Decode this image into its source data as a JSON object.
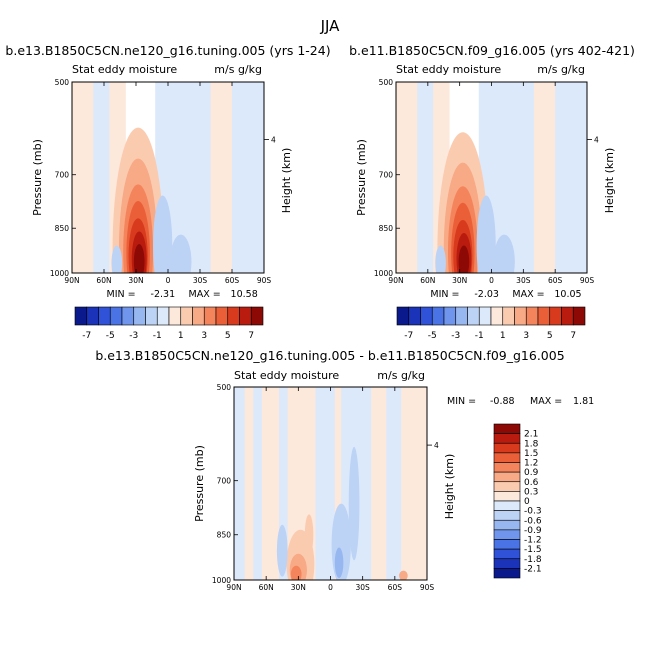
{
  "figure": {
    "title": "JJA",
    "levels_full": [
      -7,
      -6,
      -5,
      -4,
      -3,
      -2,
      -1,
      0,
      1,
      2,
      3,
      4,
      5,
      6,
      7
    ],
    "full_colorbar_labels": [
      "-7",
      "-5",
      "-3",
      "-1",
      "1",
      "3",
      "5",
      "7"
    ],
    "levels_diff": [
      "2.1",
      "1.8",
      "1.5",
      "1.2",
      "0.9",
      "0.6",
      "0.3",
      "0",
      "-0.3",
      "-0.6",
      "-0.9",
      "-1.2",
      "-1.5",
      "-1.8",
      "-2.1"
    ],
    "colors_pos": [
      "#fde9dc",
      "#fbcbb0",
      "#f8a985",
      "#f4845b",
      "#ea5f38",
      "#d83a1d",
      "#b91b0e",
      "#8c0906"
    ],
    "colors_neg": [
      "#dce9fb",
      "#bcd3f6",
      "#97b7f0",
      "#6f96ec",
      "#4a73e6",
      "#2f52d8",
      "#1a33b8",
      "#0a1a8c"
    ]
  },
  "chart_data": [
    {
      "type": "heatmap",
      "title": "b.e13.B1850C5CN.ne120_g16.tuning.005 (yrs 1-24)",
      "left_label": "Stat eddy moisture",
      "right_label": "m/s g/kg",
      "ylabel": "Pressure (mb)",
      "y2label": "Height (km)",
      "xticks": [
        "90N",
        "60N",
        "30N",
        "0",
        "30S",
        "60S",
        "90S"
      ],
      "yticks": [
        "500",
        "700",
        "850",
        "1000"
      ],
      "y2ticks": [
        "4"
      ],
      "xlim": [
        90,
        -90
      ],
      "ylim": [
        1000,
        500
      ],
      "min_label": "MIN = ",
      "min_value": "-2.31",
      "max_label": "MAX = ",
      "max_value": "10.58",
      "field": {
        "bg": [
          {
            "x0": 90,
            "x1": 70,
            "v": 0.5
          },
          {
            "x0": 70,
            "x1": 55,
            "v": -0.5
          },
          {
            "x0": 55,
            "x1": 40,
            "v": 0.5
          },
          {
            "x0": 12,
            "x1": -10,
            "v": -0.5
          },
          {
            "x0": -10,
            "x1": -40,
            "v": -0.5
          },
          {
            "x0": -40,
            "x1": -60,
            "v": 0.5
          },
          {
            "x0": -60,
            "x1": -90,
            "v": -0.5
          }
        ],
        "blobs": [
          {
            "lat": 28,
            "p": 920,
            "rx": 24,
            "rp": 330,
            "v": 1.5
          },
          {
            "lat": 28,
            "p": 920,
            "rx": 18,
            "rp": 260,
            "v": 2.5
          },
          {
            "lat": 28,
            "p": 925,
            "rx": 14,
            "rp": 200,
            "v": 3.5
          },
          {
            "lat": 28,
            "p": 930,
            "rx": 11,
            "rp": 160,
            "v": 4.5
          },
          {
            "lat": 28,
            "p": 940,
            "rx": 9,
            "rp": 120,
            "v": 5.5
          },
          {
            "lat": 27,
            "p": 950,
            "rx": 7,
            "rp": 90,
            "v": 6.5
          },
          {
            "lat": 27,
            "p": 960,
            "rx": 5,
            "rp": 60,
            "v": 7.5
          },
          {
            "lat": 5,
            "p": 905,
            "rx": 9,
            "rp": 150,
            "v": -1.5
          },
          {
            "lat": -12,
            "p": 960,
            "rx": 10,
            "rp": 90,
            "v": -1.5
          },
          {
            "lat": 48,
            "p": 965,
            "rx": 5,
            "rp": 60,
            "v": -1.5
          }
        ]
      }
    },
    {
      "type": "heatmap",
      "title": "b.e11.B1850C5CN.f09_g16.005 (yrs 402-421)",
      "left_label": "Stat eddy moisture",
      "right_label": "m/s g/kg",
      "ylabel": "Pressure (mb)",
      "y2label": "Height (km)",
      "xticks": [
        "90N",
        "60N",
        "30N",
        "0",
        "30S",
        "60S",
        "90S"
      ],
      "yticks": [
        "500",
        "700",
        "850",
        "1000"
      ],
      "y2ticks": [
        "4"
      ],
      "xlim": [
        90,
        -90
      ],
      "ylim": [
        1000,
        500
      ],
      "min_label": "MIN = ",
      "min_value": "-2.03",
      "max_label": "MAX = ",
      "max_value": "10.05",
      "field": {
        "bg": [
          {
            "x0": 90,
            "x1": 70,
            "v": 0.5
          },
          {
            "x0": 70,
            "x1": 55,
            "v": -0.5
          },
          {
            "x0": 55,
            "x1": 40,
            "v": 0.5
          },
          {
            "x0": 12,
            "x1": -10,
            "v": -0.5
          },
          {
            "x0": -10,
            "x1": -40,
            "v": -0.5
          },
          {
            "x0": -40,
            "x1": -60,
            "v": 0.5
          },
          {
            "x0": -60,
            "x1": -90,
            "v": -0.5
          }
        ],
        "blobs": [
          {
            "lat": 27,
            "p": 920,
            "rx": 24,
            "rp": 320,
            "v": 1.5
          },
          {
            "lat": 27,
            "p": 920,
            "rx": 18,
            "rp": 250,
            "v": 2.5
          },
          {
            "lat": 27,
            "p": 925,
            "rx": 14,
            "rp": 195,
            "v": 3.5
          },
          {
            "lat": 27,
            "p": 930,
            "rx": 11,
            "rp": 155,
            "v": 4.5
          },
          {
            "lat": 27,
            "p": 940,
            "rx": 9,
            "rp": 115,
            "v": 5.5
          },
          {
            "lat": 26,
            "p": 950,
            "rx": 7,
            "rp": 85,
            "v": 6.5
          },
          {
            "lat": 26,
            "p": 960,
            "rx": 5,
            "rp": 55,
            "v": 7.5
          },
          {
            "lat": 5,
            "p": 905,
            "rx": 9,
            "rp": 150,
            "v": -1.5
          },
          {
            "lat": -12,
            "p": 960,
            "rx": 10,
            "rp": 90,
            "v": -1.5
          },
          {
            "lat": 48,
            "p": 965,
            "rx": 5,
            "rp": 60,
            "v": -1.5
          }
        ]
      }
    },
    {
      "type": "heatmap",
      "title": "b.e13.B1850C5CN.ne120_g16.tuning.005 - b.e11.B1850C5CN.f09_g16.005",
      "left_label": "Stat eddy moisture",
      "right_label": "m/s g/kg",
      "ylabel": "Pressure (mb)",
      "y2label": "Height (km)",
      "xticks": [
        "90N",
        "60N",
        "30N",
        "0",
        "30S",
        "60S",
        "90S"
      ],
      "yticks": [
        "500",
        "700",
        "850",
        "1000"
      ],
      "y2ticks": [
        "4"
      ],
      "xlim": [
        90,
        -90
      ],
      "ylim": [
        1000,
        500
      ],
      "min_label": "MIN = ",
      "min_value": "-0.88",
      "max_label": "MAX = ",
      "max_value": "1.81",
      "field": {
        "bg": [
          {
            "x0": 90,
            "x1": 80,
            "v": -0.15
          },
          {
            "x0": 80,
            "x1": 72,
            "v": 0.15
          },
          {
            "x0": 72,
            "x1": 64,
            "v": -0.15
          },
          {
            "x0": 64,
            "x1": 48,
            "v": 0.15
          },
          {
            "x0": 48,
            "x1": 40,
            "v": -0.15
          },
          {
            "x0": 40,
            "x1": 14,
            "v": 0.15
          },
          {
            "x0": 14,
            "x1": -4,
            "v": -0.15
          },
          {
            "x0": -4,
            "x1": -10,
            "v": 0.15
          },
          {
            "x0": -10,
            "x1": -22,
            "v": -0.15
          },
          {
            "x0": -22,
            "x1": -38,
            "v": -0.15
          },
          {
            "x0": -38,
            "x1": -52,
            "v": 0.15
          },
          {
            "x0": -52,
            "x1": -66,
            "v": -0.15
          },
          {
            "x0": -66,
            "x1": -90,
            "v": 0.15
          }
        ],
        "blobs": [
          {
            "lat": 28,
            "p": 945,
            "rx": 13,
            "rp": 110,
            "v": 0.45
          },
          {
            "lat": 30,
            "p": 965,
            "rx": 8,
            "rp": 55,
            "v": 0.75
          },
          {
            "lat": 32,
            "p": 980,
            "rx": 5,
            "rp": 30,
            "v": 1.05
          },
          {
            "lat": 20,
            "p": 850,
            "rx": 4,
            "rp": 60,
            "v": 0.45
          },
          {
            "lat": -10,
            "p": 880,
            "rx": 9,
            "rp": 120,
            "v": -0.45
          },
          {
            "lat": -8,
            "p": 940,
            "rx": 4,
            "rp": 50,
            "v": -0.75
          },
          {
            "lat": -22,
            "p": 760,
            "rx": 5,
            "rp": 140,
            "v": -0.45
          },
          {
            "lat": 45,
            "p": 900,
            "rx": 5,
            "rp": 80,
            "v": -0.45
          },
          {
            "lat": -68,
            "p": 985,
            "rx": 4,
            "rp": 18,
            "v": 0.75
          }
        ]
      }
    }
  ]
}
